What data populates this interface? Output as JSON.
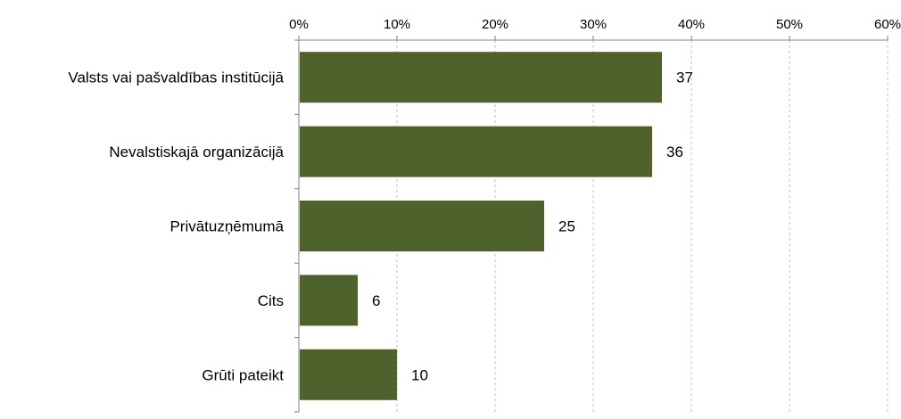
{
  "chart_data": {
    "type": "bar",
    "orientation": "horizontal",
    "categories": [
      "Valsts vai pašvaldības institūcijā",
      "Nevalstiskajā organizācijā",
      "Privātuzņēmumā",
      "Cits",
      "Grūti pateikt"
    ],
    "values": [
      37,
      36,
      25,
      6,
      10
    ],
    "data_labels": [
      "37",
      "36",
      "25",
      "6",
      "10"
    ],
    "title": "",
    "xlabel": "",
    "ylabel": "",
    "xlim": [
      0,
      60
    ],
    "x_ticks": [
      0,
      10,
      20,
      30,
      40,
      50,
      60
    ],
    "x_tick_labels": [
      "0%",
      "10%",
      "20%",
      "30%",
      "40%",
      "50%",
      "60%"
    ],
    "x_axis_position": "top",
    "grid": true,
    "legend": "none",
    "colors": {
      "bar": "#4F622B",
      "grid": "#bfbfbf",
      "axis": "#808080"
    }
  }
}
